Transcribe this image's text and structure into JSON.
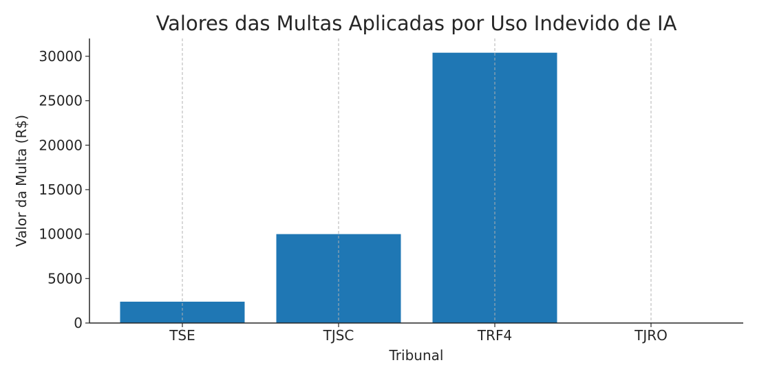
{
  "chart_data": {
    "type": "bar",
    "title": "Valores das Multas Aplicadas por Uso Indevido de IA",
    "xlabel": "Tribunal",
    "ylabel": "Valor da Multa (R$)",
    "categories": [
      "TSE",
      "TJSC",
      "TRF4",
      "TJRO"
    ],
    "values": [
      2400,
      10000,
      30400,
      0
    ],
    "ylim": [
      0,
      32000
    ],
    "yticks": [
      0,
      5000,
      10000,
      15000,
      20000,
      25000,
      30000
    ],
    "grid": "x-axis dashed",
    "bar_color": "#1f77b4"
  }
}
